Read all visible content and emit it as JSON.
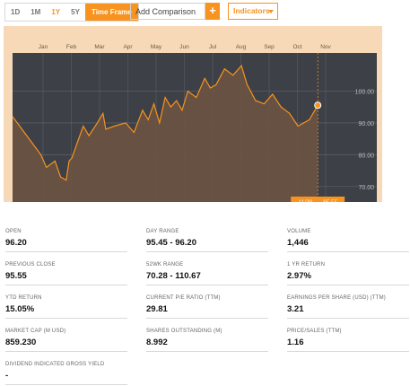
{
  "toolbar": {
    "timeframes": [
      "1D",
      "1M",
      "1Y",
      "5Y"
    ],
    "active_timeframe": "1Y",
    "timeframe_label": "Time Frame",
    "comparison_placeholder": "Add Comparison",
    "add_symbol": "+",
    "indicators_label": "Indicators"
  },
  "colors": {
    "accent": "#f7931e",
    "plot_background": "#3d4046",
    "frame": "#f7d9b7",
    "line": "#f7931e"
  },
  "chart_data": {
    "type": "area",
    "x_labels": [
      "Jan",
      "Feb",
      "Mar",
      "Apr",
      "May",
      "Jun",
      "Jul",
      "Aug",
      "Sep",
      "Oct",
      "Nov"
    ],
    "y_ticks": [
      "100.00",
      "90.00",
      "80.00",
      "70.00"
    ],
    "y_tick_values": [
      100,
      90,
      80,
      70
    ],
    "ylim": [
      64,
      112
    ],
    "grid": true,
    "series": [
      {
        "x": [
          0,
          0.5,
          1.0,
          1.2,
          1.5,
          1.7,
          1.9,
          2.0,
          2.1,
          2.3,
          2.5,
          2.7,
          3.0,
          3.2,
          3.3,
          3.6,
          4.0,
          4.3,
          4.6,
          4.8,
          5.0,
          5.2,
          5.4,
          5.6,
          5.8,
          6.0,
          6.2,
          6.5,
          6.8,
          7.0,
          7.2,
          7.5,
          7.8,
          8.1,
          8.3,
          8.6,
          8.9,
          9.2,
          9.5,
          9.8,
          10.1,
          10.5,
          10.8
        ],
        "values": [
          92,
          86,
          80,
          76,
          78,
          73,
          72,
          78,
          79,
          84,
          89,
          86,
          90,
          93,
          88,
          89,
          90,
          87,
          94,
          91,
          96,
          90,
          98,
          95,
          97,
          94,
          100,
          98,
          104,
          101,
          102,
          107,
          105,
          108,
          102,
          97,
          96,
          99,
          95,
          93,
          89,
          91,
          95.55
        ]
      }
    ],
    "last_point": {
      "date": "11/29",
      "value": "95.55"
    }
  },
  "stats": [
    {
      "label": "OPEN",
      "value": "96.20"
    },
    {
      "label": "DAY RANGE",
      "value": "95.45 - 96.20"
    },
    {
      "label": "VOLUME",
      "value": "1,446"
    },
    {
      "label": "PREVIOUS CLOSE",
      "value": "95.55"
    },
    {
      "label": "52WK RANGE",
      "value": "70.28 - 110.67"
    },
    {
      "label": "1 YR RETURN",
      "value": "2.97%"
    },
    {
      "label": "YTD RETURN",
      "value": "15.05%"
    },
    {
      "label": "CURRENT P/E RATIO (TTM)",
      "value": "29.81"
    },
    {
      "label": "EARNINGS PER SHARE (USD) (TTM)",
      "value": "3.21"
    },
    {
      "label": "MARKET CAP (M USD)",
      "value": "859.230"
    },
    {
      "label": "SHARES OUTSTANDING (M)",
      "value": "8.992"
    },
    {
      "label": "PRICE/SALES (TTM)",
      "value": "1.16"
    },
    {
      "label": "DIVIDEND INDICATED GROSS YIELD",
      "value": "-"
    }
  ]
}
